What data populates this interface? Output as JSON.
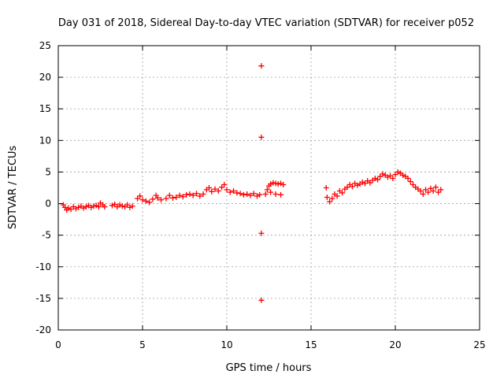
{
  "chart_data": {
    "type": "scatter",
    "title": "Day 031 of 2018, Sidereal Day-to-day VTEC variation (SDTVAR) for receiver p052",
    "xlabel": "GPS time / hours",
    "ylabel": "SDTVAR / TECUs",
    "xlim": [
      0,
      25
    ],
    "ylim": [
      -20,
      25
    ],
    "xticks": [
      0,
      5,
      10,
      15,
      20,
      25
    ],
    "yticks": [
      -20,
      -15,
      -10,
      -5,
      0,
      5,
      10,
      15,
      20,
      25
    ],
    "grid": true,
    "marker": "+",
    "marker_color": "#ff0000",
    "series": [
      {
        "name": "SDTVAR",
        "points": [
          [
            0.3,
            -0.2
          ],
          [
            0.4,
            -0.6
          ],
          [
            0.5,
            -1.0
          ],
          [
            0.6,
            -0.7
          ],
          [
            0.75,
            -0.9
          ],
          [
            0.9,
            -0.5
          ],
          [
            1.05,
            -0.8
          ],
          [
            1.2,
            -0.6
          ],
          [
            1.35,
            -0.4
          ],
          [
            1.5,
            -0.7
          ],
          [
            1.65,
            -0.5
          ],
          [
            1.8,
            -0.3
          ],
          [
            1.95,
            -0.6
          ],
          [
            2.1,
            -0.4
          ],
          [
            2.25,
            -0.3
          ],
          [
            2.4,
            -0.5
          ],
          [
            2.5,
            0.1
          ],
          [
            2.65,
            -0.2
          ],
          [
            2.75,
            -0.5
          ],
          [
            3.2,
            -0.3
          ],
          [
            3.35,
            -0.1
          ],
          [
            3.5,
            -0.5
          ],
          [
            3.65,
            -0.2
          ],
          [
            3.8,
            -0.4
          ],
          [
            3.95,
            -0.5
          ],
          [
            4.1,
            -0.2
          ],
          [
            4.25,
            -0.6
          ],
          [
            4.4,
            -0.4
          ],
          [
            4.7,
            0.8
          ],
          [
            4.85,
            1.2
          ],
          [
            5.0,
            0.6
          ],
          [
            5.2,
            0.4
          ],
          [
            5.4,
            0.2
          ],
          [
            5.6,
            0.7
          ],
          [
            5.8,
            1.3
          ],
          [
            5.9,
            0.9
          ],
          [
            6.1,
            0.6
          ],
          [
            6.4,
            0.8
          ],
          [
            6.6,
            1.3
          ],
          [
            6.8,
            0.9
          ],
          [
            7.0,
            1.0
          ],
          [
            7.2,
            1.3
          ],
          [
            7.4,
            1.1
          ],
          [
            7.6,
            1.4
          ],
          [
            7.8,
            1.5
          ],
          [
            8.0,
            1.3
          ],
          [
            8.2,
            1.6
          ],
          [
            8.4,
            1.2
          ],
          [
            8.6,
            1.5
          ],
          [
            8.8,
            2.2
          ],
          [
            8.95,
            2.5
          ],
          [
            9.1,
            1.9
          ],
          [
            9.3,
            2.3
          ],
          [
            9.5,
            2.0
          ],
          [
            9.7,
            2.6
          ],
          [
            9.85,
            3.0
          ],
          [
            10.0,
            2.2
          ],
          [
            10.2,
            1.8
          ],
          [
            10.4,
            2.0
          ],
          [
            10.6,
            1.7
          ],
          [
            10.8,
            1.6
          ],
          [
            11.0,
            1.4
          ],
          [
            11.2,
            1.5
          ],
          [
            11.4,
            1.3
          ],
          [
            11.6,
            1.6
          ],
          [
            11.8,
            1.2
          ],
          [
            11.95,
            1.4
          ],
          [
            12.05,
            21.8
          ],
          [
            12.05,
            10.5
          ],
          [
            12.05,
            -4.7
          ],
          [
            12.05,
            -15.3
          ],
          [
            12.3,
            1.5
          ],
          [
            12.4,
            2.2
          ],
          [
            12.5,
            2.8
          ],
          [
            12.6,
            3.1
          ],
          [
            12.75,
            3.3
          ],
          [
            12.9,
            3.2
          ],
          [
            13.05,
            3.1
          ],
          [
            13.2,
            3.2
          ],
          [
            13.35,
            3.0
          ],
          [
            12.6,
            1.8
          ],
          [
            12.9,
            1.5
          ],
          [
            13.2,
            1.4
          ],
          [
            15.9,
            2.5
          ],
          [
            15.95,
            1.0
          ],
          [
            16.1,
            0.3
          ],
          [
            16.25,
            0.8
          ],
          [
            16.4,
            1.5
          ],
          [
            16.55,
            1.2
          ],
          [
            16.7,
            2.0
          ],
          [
            16.85,
            1.7
          ],
          [
            17.0,
            2.3
          ],
          [
            17.15,
            2.6
          ],
          [
            17.3,
            3.0
          ],
          [
            17.45,
            2.7
          ],
          [
            17.6,
            3.2
          ],
          [
            17.75,
            2.9
          ],
          [
            17.9,
            3.1
          ],
          [
            18.05,
            3.4
          ],
          [
            18.2,
            3.2
          ],
          [
            18.35,
            3.6
          ],
          [
            18.5,
            3.3
          ],
          [
            18.65,
            3.7
          ],
          [
            18.8,
            4.0
          ],
          [
            18.95,
            3.8
          ],
          [
            19.1,
            4.3
          ],
          [
            19.25,
            4.7
          ],
          [
            19.4,
            4.5
          ],
          [
            19.55,
            4.2
          ],
          [
            19.7,
            4.4
          ],
          [
            19.85,
            4.0
          ],
          [
            20.0,
            4.6
          ],
          [
            20.15,
            5.0
          ],
          [
            20.3,
            4.8
          ],
          [
            20.45,
            4.5
          ],
          [
            20.6,
            4.3
          ],
          [
            20.75,
            4.0
          ],
          [
            20.9,
            3.5
          ],
          [
            21.05,
            3.0
          ],
          [
            21.2,
            2.6
          ],
          [
            21.35,
            2.3
          ],
          [
            21.5,
            2.0
          ],
          [
            21.65,
            1.5
          ],
          [
            21.8,
            2.2
          ],
          [
            21.95,
            1.8
          ],
          [
            22.1,
            2.4
          ],
          [
            22.25,
            2.0
          ],
          [
            22.4,
            2.6
          ],
          [
            22.55,
            1.8
          ],
          [
            22.7,
            2.2
          ]
        ]
      }
    ]
  }
}
